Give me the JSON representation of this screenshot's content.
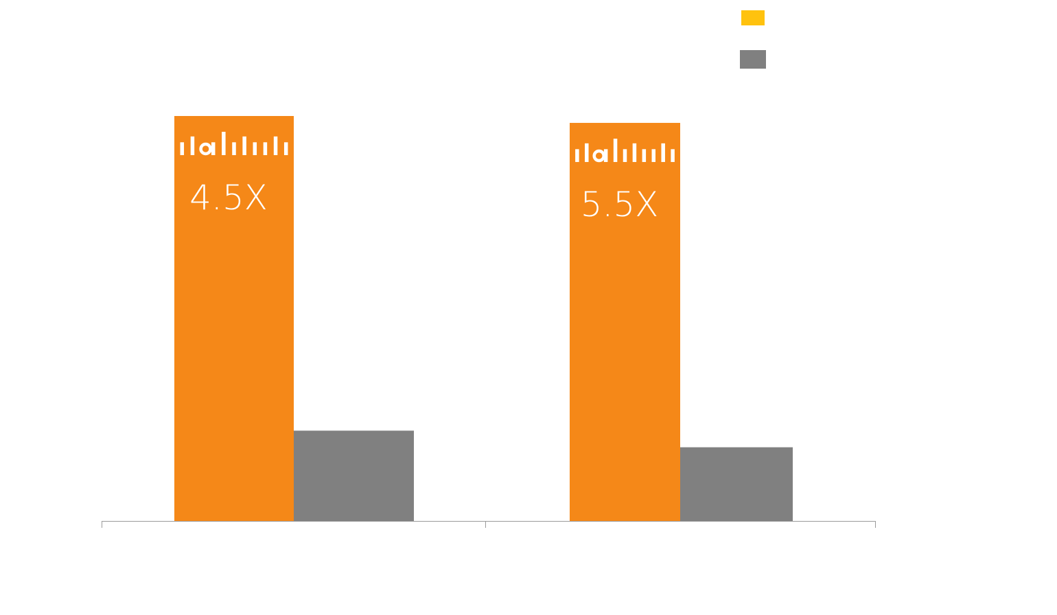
{
  "chart_data": {
    "type": "bar",
    "categories": [
      "",
      ""
    ],
    "series": [
      {
        "values": [
          100,
          98.3
        ],
        "color": "#F58818"
      },
      {
        "values": [
          22.3,
          18.2
        ],
        "color": "#808080"
      }
    ],
    "bar_labels": [
      "4.5X",
      "5.5X"
    ],
    "legend_swatch_colors": [
      "#FFC20E",
      "#808080"
    ],
    "legend_position": "top-right",
    "ylim": [
      0,
      100
    ],
    "grid": false,
    "logo_icon": "cisco-logo-icon"
  }
}
